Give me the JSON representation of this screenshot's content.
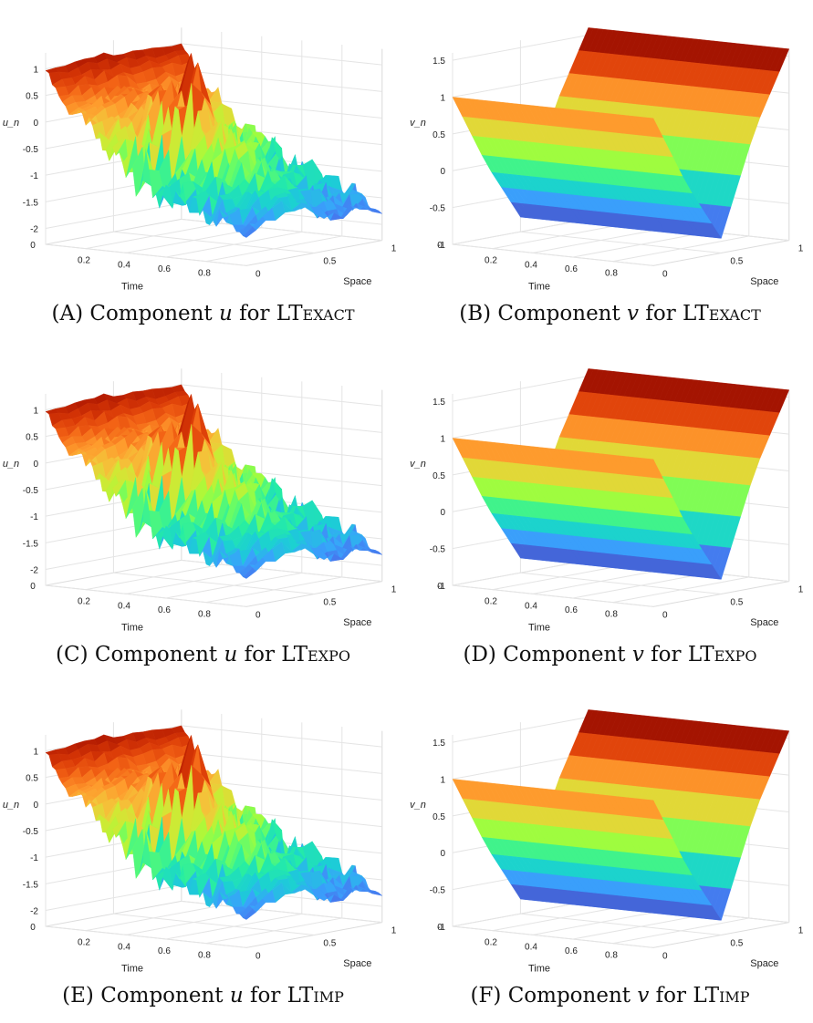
{
  "chart_data": [
    {
      "type": "surface",
      "panel": "A",
      "caption": {
        "letter": "A",
        "variable": "u",
        "method_prefix": "LT",
        "method_sc": "exact"
      },
      "xlabel": "Time",
      "ylabel": "Space",
      "zlabel": "u_n",
      "x_ticks": [
        "0.2",
        "0.4",
        "0.6",
        "0.8"
      ],
      "y_ticks": [
        "0",
        "0.5",
        "1"
      ],
      "z_ticks": [
        "1",
        "0.5",
        "0",
        "-0.5",
        "-1",
        "-1.5",
        "-2"
      ],
      "x_range": [
        0,
        1
      ],
      "y_range": [
        0,
        1
      ],
      "z_range": [
        -2.3,
        1.3
      ],
      "x_origin_label": "0",
      "time": [
        0,
        0.1,
        0.2,
        0.3,
        0.4,
        0.5,
        0.6,
        0.7,
        0.8,
        0.9,
        1.0
      ],
      "mean_value": [
        1.0,
        0.3,
        0.1,
        -0.5,
        -0.6,
        -0.9,
        -1.3,
        -1.2,
        -1.4,
        -1.5,
        -1.7
      ],
      "peak_value": [
        1.1,
        0.5,
        0.5,
        0.6,
        0.6,
        1.3,
        0.1,
        -0.1,
        -0.5,
        -0.8,
        -1.3
      ],
      "min_value": [
        0.9,
        -0.2,
        -0.3,
        -1.0,
        -1.8,
        -2.0,
        -1.9,
        -2.2,
        -2.1,
        -2.0,
        -2.0
      ]
    },
    {
      "type": "surface",
      "panel": "B",
      "caption": {
        "letter": "B",
        "variable": "v",
        "method_prefix": "LT",
        "method_sc": "exact"
      },
      "xlabel": "Time",
      "ylabel": "Space",
      "zlabel": "v_n",
      "x_ticks": [
        "0.2",
        "0.4",
        "0.6",
        "0.8"
      ],
      "y_ticks": [
        "0",
        "0.5",
        "1"
      ],
      "z_ticks": [
        "1.5",
        "1",
        "0.5",
        "0",
        "-0.5",
        "-1"
      ],
      "x_range": [
        0,
        1
      ],
      "y_range": [
        0,
        1
      ],
      "z_range": [
        -1,
        1.6
      ],
      "x_origin_label": "0",
      "space": [
        0,
        0.25,
        0.5,
        0.75,
        1.0
      ],
      "profile": [
        1.0,
        0.0,
        -0.8,
        0.6,
        1.6
      ]
    },
    {
      "type": "surface",
      "panel": "C",
      "caption": {
        "letter": "C",
        "variable": "u",
        "method_prefix": "LT",
        "method_sc": "expo"
      },
      "xlabel": "Time",
      "ylabel": "Space",
      "zlabel": "u_n",
      "x_ticks": [
        "0.2",
        "0.4",
        "0.6",
        "0.8"
      ],
      "y_ticks": [
        "0",
        "0.5",
        "1"
      ],
      "z_ticks": [
        "1",
        "0.5",
        "0",
        "-0.5",
        "-1",
        "-1.5",
        "-2"
      ],
      "x_range": [
        0,
        1
      ],
      "y_range": [
        0,
        1
      ],
      "z_range": [
        -2.3,
        1.3
      ],
      "x_origin_label": "0",
      "time": [
        0,
        0.1,
        0.2,
        0.3,
        0.4,
        0.5,
        0.6,
        0.7,
        0.8,
        0.9,
        1.0
      ],
      "mean_value": [
        1.0,
        0.3,
        0.1,
        -0.5,
        -0.6,
        -0.9,
        -1.3,
        -1.2,
        -1.4,
        -1.5,
        -1.7
      ],
      "peak_value": [
        1.1,
        0.5,
        0.5,
        0.6,
        0.6,
        1.3,
        0.1,
        -0.1,
        -0.5,
        -0.8,
        -1.3
      ],
      "min_value": [
        0.9,
        -0.2,
        -0.3,
        -1.0,
        -1.8,
        -2.0,
        -1.9,
        -2.2,
        -2.1,
        -2.0,
        -2.0
      ]
    },
    {
      "type": "surface",
      "panel": "D",
      "caption": {
        "letter": "D",
        "variable": "v",
        "method_prefix": "LT",
        "method_sc": "expo"
      },
      "xlabel": "Time",
      "ylabel": "Space",
      "zlabel": "v_n",
      "x_ticks": [
        "0.2",
        "0.4",
        "0.6",
        "0.8"
      ],
      "y_ticks": [
        "0",
        "0.5",
        "1"
      ],
      "z_ticks": [
        "1.5",
        "1",
        "0.5",
        "0",
        "-0.5",
        "-1"
      ],
      "x_range": [
        0,
        1
      ],
      "y_range": [
        0,
        1
      ],
      "z_range": [
        -1,
        1.6
      ],
      "x_origin_label": "0",
      "space": [
        0,
        0.25,
        0.5,
        0.75,
        1.0
      ],
      "profile": [
        1.0,
        0.0,
        -0.8,
        0.6,
        1.6
      ]
    },
    {
      "type": "surface",
      "panel": "E",
      "caption": {
        "letter": "E",
        "variable": "u",
        "method_prefix": "LT",
        "method_sc": "imp"
      },
      "xlabel": "Time",
      "ylabel": "Space",
      "zlabel": "u_n",
      "x_ticks": [
        "0.2",
        "0.4",
        "0.6",
        "0.8"
      ],
      "y_ticks": [
        "0",
        "0.5",
        "1"
      ],
      "z_ticks": [
        "1",
        "0.5",
        "0",
        "-0.5",
        "-1",
        "-1.5",
        "-2"
      ],
      "x_range": [
        0,
        1
      ],
      "y_range": [
        0,
        1
      ],
      "z_range": [
        -2.3,
        1.3
      ],
      "x_origin_label": "0",
      "time": [
        0,
        0.1,
        0.2,
        0.3,
        0.4,
        0.5,
        0.6,
        0.7,
        0.8,
        0.9,
        1.0
      ],
      "mean_value": [
        1.0,
        0.3,
        0.1,
        -0.5,
        -0.6,
        -0.9,
        -1.3,
        -1.2,
        -1.4,
        -1.5,
        -1.7
      ],
      "peak_value": [
        1.1,
        0.5,
        0.5,
        0.6,
        0.6,
        1.3,
        0.1,
        -0.1,
        -0.5,
        -0.8,
        -1.3
      ],
      "min_value": [
        0.9,
        -0.2,
        -0.3,
        -1.0,
        -1.8,
        -2.0,
        -1.9,
        -2.2,
        -2.1,
        -2.0,
        -2.0
      ]
    },
    {
      "type": "surface",
      "panel": "F",
      "caption": {
        "letter": "F",
        "variable": "v",
        "method_prefix": "LT",
        "method_sc": "imp"
      },
      "xlabel": "Time",
      "ylabel": "Space",
      "zlabel": "v_n",
      "x_ticks": [
        "0.2",
        "0.4",
        "0.6",
        "0.8"
      ],
      "y_ticks": [
        "0",
        "0.5",
        "1"
      ],
      "z_ticks": [
        "1.5",
        "1",
        "0.5",
        "0",
        "-0.5",
        "-1"
      ],
      "x_range": [
        0,
        1
      ],
      "y_range": [
        0,
        1
      ],
      "z_range": [
        -1,
        1.6
      ],
      "x_origin_label": "0",
      "space": [
        0,
        0.25,
        0.5,
        0.75,
        1.0
      ],
      "profile": [
        1.0,
        0.0,
        -0.8,
        0.6,
        1.6
      ]
    }
  ],
  "colormap": [
    "#30123b",
    "#4145ab",
    "#4675ed",
    "#39a2fc",
    "#1bcfd4",
    "#24eca6",
    "#61fc6c",
    "#a4fc3b",
    "#d1e834",
    "#f3c63a",
    "#fe9b2d",
    "#f36315",
    "#d93806",
    "#b11901",
    "#7a0402"
  ]
}
